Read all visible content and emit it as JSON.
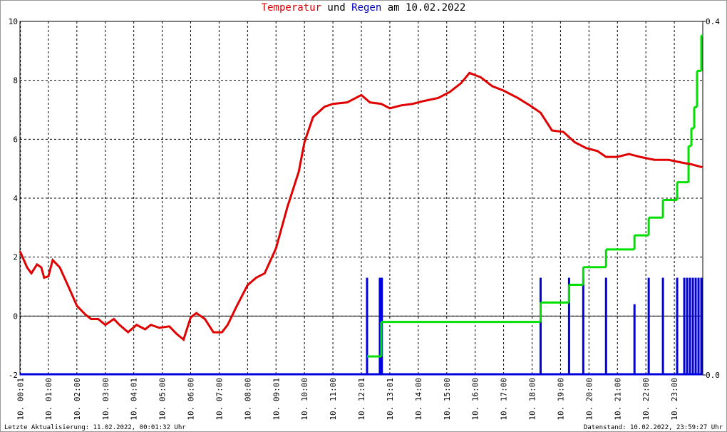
{
  "chart_data": {
    "type": "line",
    "title": [
      "Temperatur",
      "und",
      "Regen",
      "am 10.02.2022"
    ],
    "xlim": [
      0,
      24
    ],
    "xticks": [
      {
        "value": 0.0167,
        "label": "10. 00:01"
      },
      {
        "value": 1,
        "label": "10. 01:00"
      },
      {
        "value": 2,
        "label": "10. 02:00"
      },
      {
        "value": 3,
        "label": "10. 03:00"
      },
      {
        "value": 4,
        "label": "10. 04:01"
      },
      {
        "value": 5,
        "label": "10. 05:00"
      },
      {
        "value": 6,
        "label": "10. 06:00"
      },
      {
        "value": 7,
        "label": "10. 07:00"
      },
      {
        "value": 8,
        "label": "10. 08:00"
      },
      {
        "value": 9,
        "label": "10. 09:01"
      },
      {
        "value": 10,
        "label": "10. 10:00"
      },
      {
        "value": 11,
        "label": "10. 11:00"
      },
      {
        "value": 12,
        "label": "10. 12:01"
      },
      {
        "value": 13,
        "label": "10. 13:01"
      },
      {
        "value": 14,
        "label": "10. 14:00"
      },
      {
        "value": 15,
        "label": "10. 15:00"
      },
      {
        "value": 16,
        "label": "10. 16:00"
      },
      {
        "value": 17,
        "label": "10. 17:00"
      },
      {
        "value": 18,
        "label": "10. 18:00"
      },
      {
        "value": 19,
        "label": "10. 19:00"
      },
      {
        "value": 20,
        "label": "10. 20:00"
      },
      {
        "value": 21,
        "label": "10. 21:00"
      },
      {
        "value": 22,
        "label": "10. 22:00"
      },
      {
        "value": 23,
        "label": "10. 23:00"
      }
    ],
    "ylim": [
      -2,
      10
    ],
    "yticks": [
      -2,
      0,
      2,
      4,
      6,
      8,
      10
    ],
    "y2lim": [
      0,
      0.4
    ],
    "y2ticks": [
      {
        "value": 0,
        "label": "0.0"
      },
      0.4
    ],
    "grid": true,
    "series": [
      {
        "color": "#e00000",
        "style": "line",
        "x": [
          0,
          0.25,
          0.4,
          0.6,
          0.75,
          0.85,
          1.0,
          1.15,
          1.4,
          1.75,
          2.0,
          2.3,
          2.5,
          2.75,
          3.0,
          3.3,
          3.5,
          3.8,
          4.1,
          4.4,
          4.6,
          4.9,
          5.25,
          5.5,
          5.75,
          6.0,
          6.2,
          6.5,
          6.8,
          7.1,
          7.3,
          7.6,
          8.0,
          8.3,
          8.6,
          9.0,
          9.4,
          9.8,
          10.0,
          10.3,
          10.7,
          11.0,
          11.5,
          12.0,
          12.3,
          12.7,
          13.0,
          13.4,
          13.8,
          14.2,
          14.7,
          15.1,
          15.5,
          15.8,
          16.2,
          16.6,
          17.0,
          17.5,
          18.0,
          18.3,
          18.7,
          19.1,
          19.5,
          19.9,
          20.3,
          20.6,
          21.0,
          21.4,
          21.8,
          22.3,
          22.8,
          23.3,
          23.6,
          23.98
        ],
        "values": [
          2.2,
          1.65,
          1.45,
          1.75,
          1.65,
          1.3,
          1.35,
          1.9,
          1.65,
          0.9,
          0.35,
          0.05,
          -0.1,
          -0.1,
          -0.3,
          -0.1,
          -0.3,
          -0.55,
          -0.3,
          -0.45,
          -0.3,
          -0.4,
          -0.35,
          -0.6,
          -0.8,
          -0.05,
          0.1,
          -0.1,
          -0.55,
          -0.55,
          -0.3,
          0.3,
          1.05,
          1.3,
          1.45,
          2.3,
          3.7,
          4.9,
          5.9,
          6.75,
          7.1,
          7.2,
          7.25,
          7.5,
          7.25,
          7.2,
          7.05,
          7.15,
          7.2,
          7.3,
          7.4,
          7.6,
          7.9,
          8.25,
          8.1,
          7.8,
          7.65,
          7.4,
          7.1,
          6.9,
          6.3,
          6.25,
          5.9,
          5.7,
          5.6,
          5.4,
          5.4,
          5.5,
          5.4,
          5.3,
          5.3,
          5.2,
          5.15,
          5.05
        ]
      },
      {
        "color": "#00e000",
        "style": "step",
        "axis": "y2",
        "x": [
          12.2,
          12.7,
          18.3,
          19.3,
          19.8,
          20.6,
          21.6,
          22.1,
          22.6,
          23.1,
          23.5,
          23.6,
          23.7,
          23.8,
          23.95
        ],
        "values": [
          0.021,
          0.06,
          0.082,
          0.102,
          0.122,
          0.142,
          0.158,
          0.178,
          0.198,
          0.218,
          0.259,
          0.279,
          0.303,
          0.344,
          0.384
        ]
      },
      {
        "color": "#0000e0",
        "style": "bar",
        "axis": "y2",
        "x": [
          12.2,
          12.65,
          12.72,
          18.3,
          19.3,
          19.8,
          20.6,
          21.6,
          22.1,
          22.6,
          23.1,
          23.35,
          23.45,
          23.55,
          23.65,
          23.75,
          23.85,
          23.95
        ],
        "values": [
          0.11,
          0.11,
          0.11,
          0.11,
          0.11,
          0.11,
          0.11,
          0.08,
          0.11,
          0.11,
          0.11,
          0.11,
          0.11,
          0.11,
          0.11,
          0.11,
          0.11,
          0.11
        ]
      }
    ],
    "footer_left": "Letzte Aktualisierung: 11.02.2022, 00:01:32 Uhr",
    "footer_right": "Datenstand: 10.02.2022, 23:59:27 Uhr"
  }
}
